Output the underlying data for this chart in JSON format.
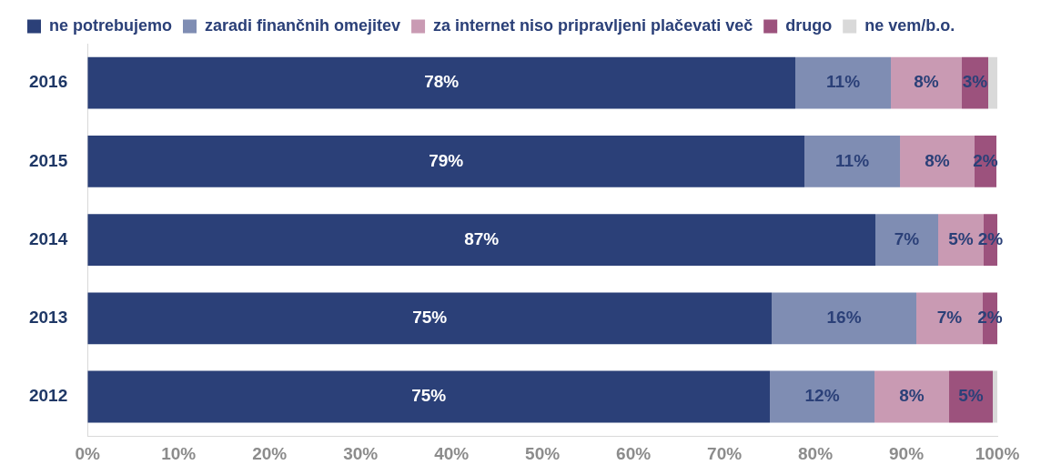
{
  "chart_data": {
    "type": "bar",
    "orientation": "horizontal",
    "stacked": true,
    "legend": "top left",
    "grid": false,
    "categories": [
      "2016",
      "2015",
      "2014",
      "2013",
      "2012"
    ],
    "series": [
      {
        "name": "ne potrebujemo",
        "color": "#2b4078",
        "values": [
          77.8,
          78.8,
          86.6,
          75.2,
          75.0
        ],
        "value_labels": [
          "78%",
          "79%",
          "87%",
          "75%",
          "75%"
        ]
      },
      {
        "name": "zaradi finančnih omejitev",
        "color": "#7f8db3",
        "values": [
          10.5,
          10.5,
          6.9,
          15.9,
          11.5
        ],
        "value_labels": [
          "11%",
          "11%",
          "7%",
          "16%",
          "12%"
        ]
      },
      {
        "name": "za internet niso pripravljeni plačevati več",
        "color": "#c99ab3",
        "values": [
          7.8,
          8.2,
          5.0,
          7.3,
          8.2
        ],
        "value_labels": [
          "8%",
          "8%",
          "5%",
          "7%",
          "8%"
        ]
      },
      {
        "name": "drugo",
        "color": "#9c527d",
        "values": [
          2.9,
          2.4,
          1.5,
          1.6,
          4.8
        ],
        "value_labels": [
          "3%",
          "2%",
          "2%",
          "2%",
          "5%"
        ]
      },
      {
        "name": "ne vem/b.o.",
        "color": "#d9d9d9",
        "values": [
          1.0,
          null,
          null,
          null,
          0.5
        ],
        "value_labels": [
          null,
          null,
          null,
          null,
          null
        ]
      }
    ],
    "xlim": [
      0,
      100
    ],
    "xticks": [
      {
        "value": 0,
        "label": "0%"
      },
      {
        "value": 10,
        "label": "10%"
      },
      {
        "value": 20,
        "label": "20%"
      },
      {
        "value": 30,
        "label": "30%"
      },
      {
        "value": 40,
        "label": "40%"
      },
      {
        "value": 50,
        "label": "50%"
      },
      {
        "value": 60,
        "label": "60%"
      },
      {
        "value": 70,
        "label": "70%"
      },
      {
        "value": 80,
        "label": "80%"
      },
      {
        "value": 90,
        "label": "90%"
      },
      {
        "value": 100,
        "label": "100%"
      }
    ]
  }
}
